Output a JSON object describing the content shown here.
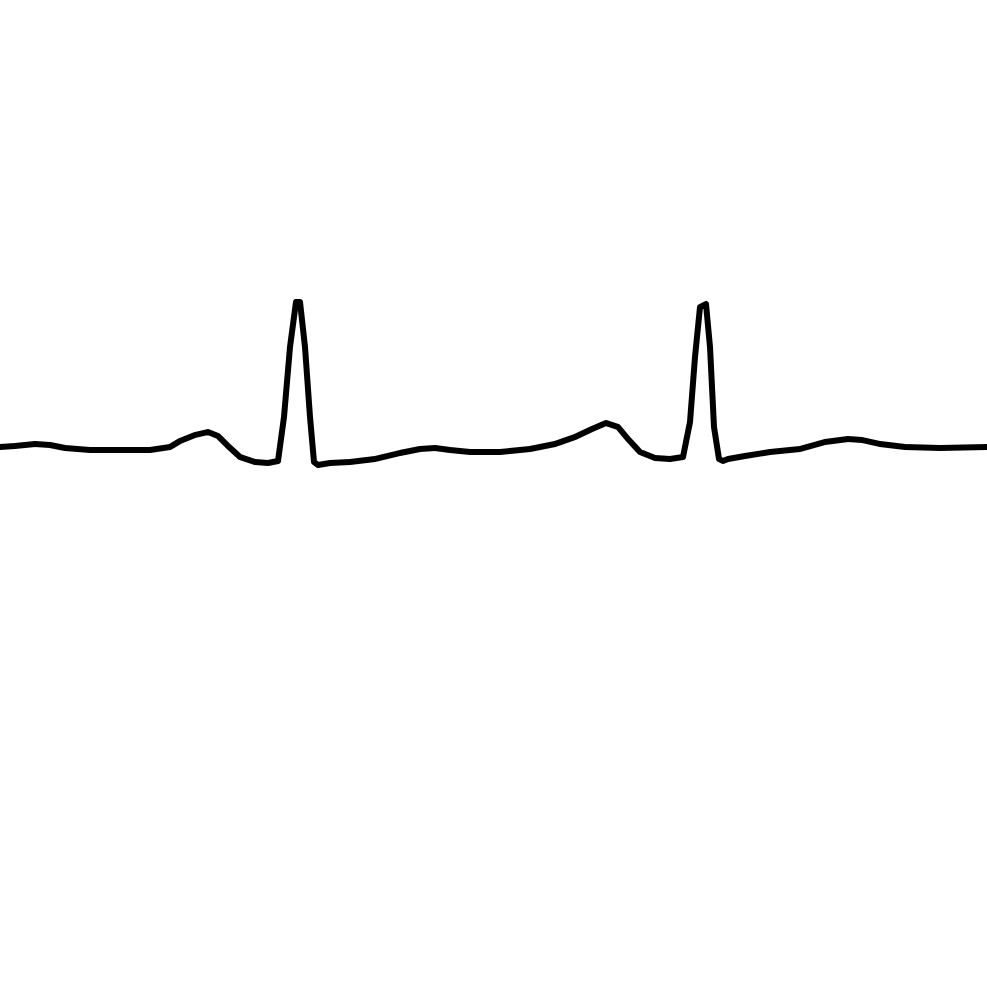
{
  "chart_data": {
    "type": "line",
    "title": "",
    "xlabel": "",
    "ylabel": "",
    "x_range": [
      0,
      987
    ],
    "y_range": [
      -540,
      447
    ],
    "grid": false,
    "legend": "none",
    "colors": {
      "trace": "#000000",
      "background": "#ffffff"
    },
    "series": [
      {
        "x": [
          0,
          15,
          35,
          50,
          65,
          90,
          120,
          150,
          170,
          180,
          195,
          208,
          218,
          228,
          240,
          255,
          268,
          278,
          284,
          290,
          296,
          300,
          305,
          310,
          314,
          318,
          330,
          350,
          375,
          400,
          420,
          435,
          450,
          470,
          500,
          530,
          555,
          575,
          592,
          606,
          618,
          628,
          640,
          655,
          670,
          683,
          690,
          695,
          700,
          706,
          710,
          714,
          719,
          723,
          728,
          745,
          770,
          800,
          825,
          848,
          862,
          880,
          905,
          940,
          987
        ],
        "y": [
          0,
          1,
          3,
          2,
          -1,
          -3,
          -3,
          -3,
          0,
          6,
          12,
          15,
          11,
          1,
          -10,
          -15,
          -16,
          -14,
          30,
          100,
          145,
          145,
          100,
          30,
          -15,
          -18,
          -16,
          -15,
          -12,
          -6,
          -2,
          -1,
          -3,
          -5,
          -5,
          -2,
          3,
          10,
          18,
          24,
          20,
          8,
          -5,
          -11,
          -12,
          -10,
          25,
          90,
          140,
          143,
          100,
          20,
          -12,
          -14,
          -12,
          -9,
          -5,
          -2,
          5,
          8,
          7,
          3,
          0,
          -1,
          0
        ]
      }
    ]
  }
}
